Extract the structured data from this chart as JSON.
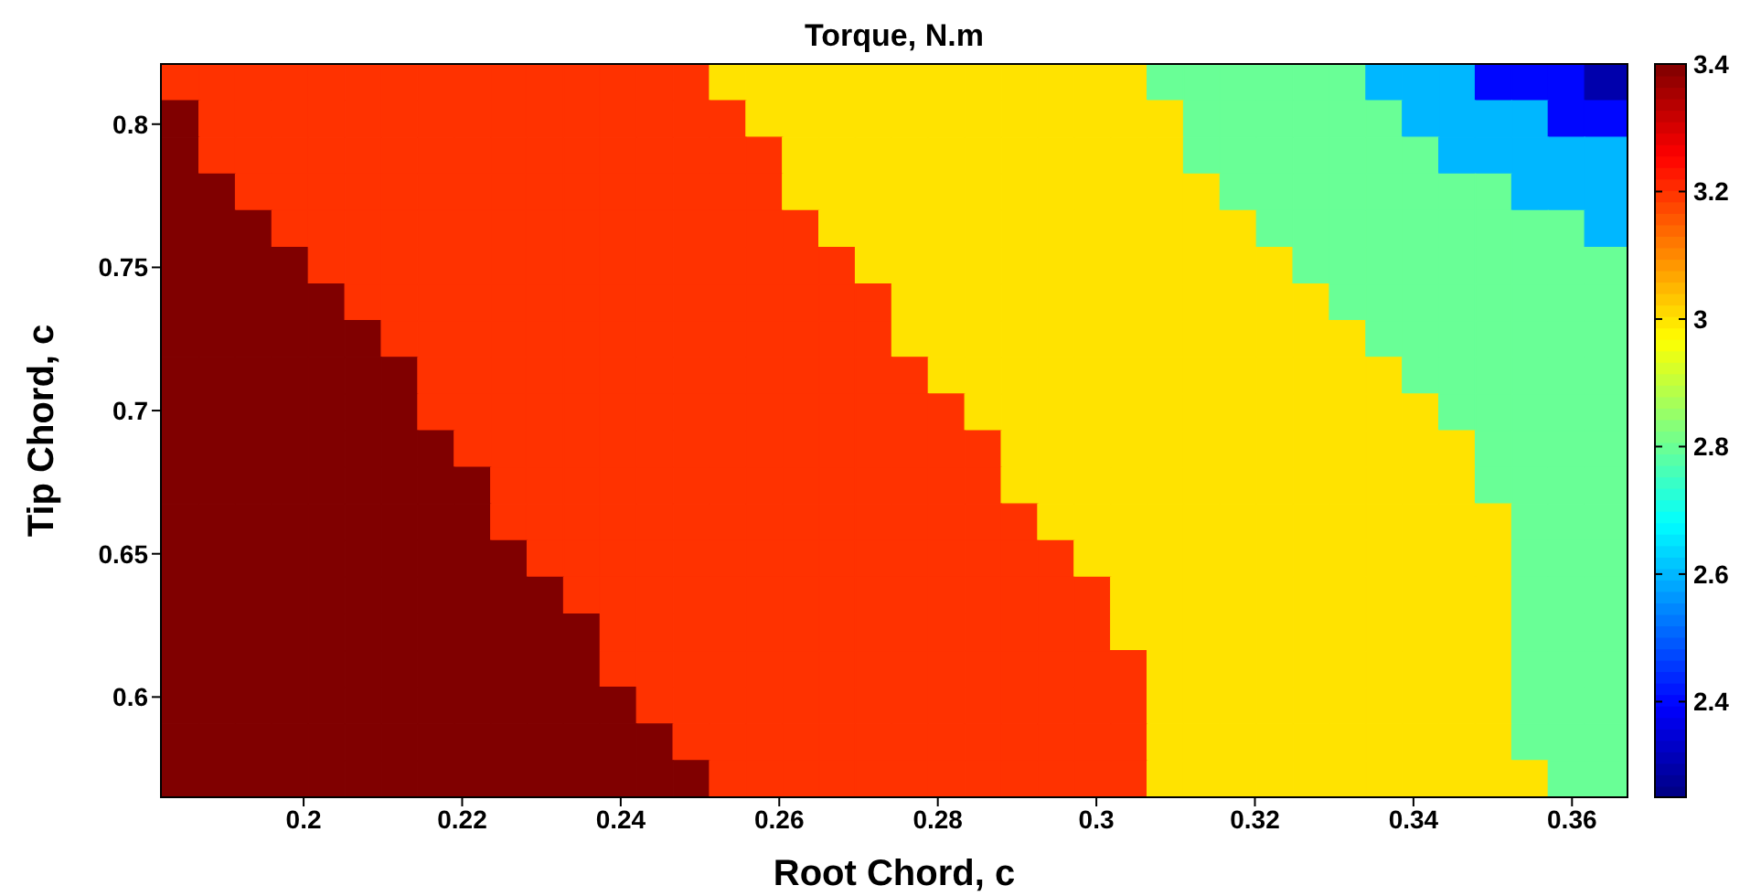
{
  "chart_data": {
    "type": "heatmap",
    "title": "Torque, N.m",
    "xlabel": "Root Chord, c",
    "ylabel": "Tip Chord, c",
    "x": [
      0.1845,
      0.1891,
      0.1937,
      0.1983,
      0.2029,
      0.2075,
      0.2121,
      0.2167,
      0.2213,
      0.2259,
      0.2305,
      0.2351,
      0.2397,
      0.2443,
      0.2489,
      0.2535,
      0.2581,
      0.2627,
      0.2673,
      0.2719,
      0.2765,
      0.2811,
      0.2857,
      0.2903,
      0.2949,
      0.2995,
      0.3041,
      0.3087,
      0.3133,
      0.3179,
      0.3225,
      0.3271,
      0.3317,
      0.3363,
      0.3409,
      0.3455,
      0.3501,
      0.3547,
      0.3593,
      0.3639
    ],
    "y": [
      0.8146,
      0.8018,
      0.789,
      0.7762,
      0.7634,
      0.7506,
      0.7378,
      0.725,
      0.7122,
      0.6994,
      0.6866,
      0.6738,
      0.661,
      0.6482,
      0.6354,
      0.6226,
      0.6098,
      0.597,
      0.5842,
      0.5714
    ],
    "xlim": [
      0.182,
      0.367
    ],
    "xticks": [
      0.2,
      0.22,
      0.24,
      0.26,
      0.28,
      0.3,
      0.32,
      0.34,
      0.36
    ],
    "ylim": [
      0.565,
      0.821
    ],
    "yticks": [
      0.6,
      0.65,
      0.7,
      0.75,
      0.8
    ],
    "clim": [
      2.25,
      3.4
    ],
    "cticks": [
      2.4,
      2.6,
      2.8,
      3,
      3.2,
      3.4
    ],
    "cells": [
      [
        3.2,
        3.2,
        3.2,
        3.2,
        3.2,
        3.2,
        3.2,
        3.2,
        3.2,
        3.2,
        3.2,
        3.2,
        3.2,
        3.2,
        3.2,
        3,
        3,
        3,
        3,
        3,
        3,
        3,
        3,
        3,
        3,
        3,
        3,
        2.8,
        2.8,
        2.8,
        2.8,
        2.8,
        2.8,
        2.6,
        2.6,
        2.6,
        2.4,
        2.4,
        2.4,
        2.3
      ],
      [
        3.4,
        3.2,
        3.2,
        3.2,
        3.2,
        3.2,
        3.2,
        3.2,
        3.2,
        3.2,
        3.2,
        3.2,
        3.2,
        3.2,
        3.2,
        3.2,
        3,
        3,
        3,
        3,
        3,
        3,
        3,
        3,
        3,
        3,
        3,
        3,
        2.8,
        2.8,
        2.8,
        2.8,
        2.8,
        2.8,
        2.6,
        2.6,
        2.6,
        2.6,
        2.4,
        2.4
      ],
      [
        3.4,
        3.2,
        3.2,
        3.2,
        3.2,
        3.2,
        3.2,
        3.2,
        3.2,
        3.2,
        3.2,
        3.2,
        3.2,
        3.2,
        3.2,
        3.2,
        3.2,
        3,
        3,
        3,
        3,
        3,
        3,
        3,
        3,
        3,
        3,
        3,
        2.8,
        2.8,
        2.8,
        2.8,
        2.8,
        2.8,
        2.8,
        2.6,
        2.6,
        2.6,
        2.6,
        2.6
      ],
      [
        3.4,
        3.4,
        3.2,
        3.2,
        3.2,
        3.2,
        3.2,
        3.2,
        3.2,
        3.2,
        3.2,
        3.2,
        3.2,
        3.2,
        3.2,
        3.2,
        3.2,
        3,
        3,
        3,
        3,
        3,
        3,
        3,
        3,
        3,
        3,
        3,
        3,
        2.8,
        2.8,
        2.8,
        2.8,
        2.8,
        2.8,
        2.8,
        2.8,
        2.6,
        2.6,
        2.6
      ],
      [
        3.4,
        3.4,
        3.4,
        3.2,
        3.2,
        3.2,
        3.2,
        3.2,
        3.2,
        3.2,
        3.2,
        3.2,
        3.2,
        3.2,
        3.2,
        3.2,
        3.2,
        3.2,
        3,
        3,
        3,
        3,
        3,
        3,
        3,
        3,
        3,
        3,
        3,
        3,
        2.8,
        2.8,
        2.8,
        2.8,
        2.8,
        2.8,
        2.8,
        2.8,
        2.8,
        2.6
      ],
      [
        3.4,
        3.4,
        3.4,
        3.4,
        3.2,
        3.2,
        3.2,
        3.2,
        3.2,
        3.2,
        3.2,
        3.2,
        3.2,
        3.2,
        3.2,
        3.2,
        3.2,
        3.2,
        3.2,
        3,
        3,
        3,
        3,
        3,
        3,
        3,
        3,
        3,
        3,
        3,
        3,
        2.8,
        2.8,
        2.8,
        2.8,
        2.8,
        2.8,
        2.8,
        2.8,
        2.8
      ],
      [
        3.4,
        3.4,
        3.4,
        3.4,
        3.4,
        3.2,
        3.2,
        3.2,
        3.2,
        3.2,
        3.2,
        3.2,
        3.2,
        3.2,
        3.2,
        3.2,
        3.2,
        3.2,
        3.2,
        3.2,
        3,
        3,
        3,
        3,
        3,
        3,
        3,
        3,
        3,
        3,
        3,
        3,
        2.8,
        2.8,
        2.8,
        2.8,
        2.8,
        2.8,
        2.8,
        2.8
      ],
      [
        3.4,
        3.4,
        3.4,
        3.4,
        3.4,
        3.4,
        3.2,
        3.2,
        3.2,
        3.2,
        3.2,
        3.2,
        3.2,
        3.2,
        3.2,
        3.2,
        3.2,
        3.2,
        3.2,
        3.2,
        3,
        3,
        3,
        3,
        3,
        3,
        3,
        3,
        3,
        3,
        3,
        3,
        3,
        2.8,
        2.8,
        2.8,
        2.8,
        2.8,
        2.8,
        2.8
      ],
      [
        3.4,
        3.4,
        3.4,
        3.4,
        3.4,
        3.4,
        3.4,
        3.2,
        3.2,
        3.2,
        3.2,
        3.2,
        3.2,
        3.2,
        3.2,
        3.2,
        3.2,
        3.2,
        3.2,
        3.2,
        3.2,
        3,
        3,
        3,
        3,
        3,
        3,
        3,
        3,
        3,
        3,
        3,
        3,
        3,
        2.8,
        2.8,
        2.8,
        2.8,
        2.8,
        2.8
      ],
      [
        3.4,
        3.4,
        3.4,
        3.4,
        3.4,
        3.4,
        3.4,
        3.2,
        3.2,
        3.2,
        3.2,
        3.2,
        3.2,
        3.2,
        3.2,
        3.2,
        3.2,
        3.2,
        3.2,
        3.2,
        3.2,
        3.2,
        3,
        3,
        3,
        3,
        3,
        3,
        3,
        3,
        3,
        3,
        3,
        3,
        3,
        2.8,
        2.8,
        2.8,
        2.8,
        2.8
      ],
      [
        3.4,
        3.4,
        3.4,
        3.4,
        3.4,
        3.4,
        3.4,
        3.4,
        3.2,
        3.2,
        3.2,
        3.2,
        3.2,
        3.2,
        3.2,
        3.2,
        3.2,
        3.2,
        3.2,
        3.2,
        3.2,
        3.2,
        3.2,
        3,
        3,
        3,
        3,
        3,
        3,
        3,
        3,
        3,
        3,
        3,
        3,
        3,
        2.8,
        2.8,
        2.8,
        2.8
      ],
      [
        3.4,
        3.4,
        3.4,
        3.4,
        3.4,
        3.4,
        3.4,
        3.4,
        3.4,
        3.2,
        3.2,
        3.2,
        3.2,
        3.2,
        3.2,
        3.2,
        3.2,
        3.2,
        3.2,
        3.2,
        3.2,
        3.2,
        3.2,
        3,
        3,
        3,
        3,
        3,
        3,
        3,
        3,
        3,
        3,
        3,
        3,
        3,
        2.8,
        2.8,
        2.8,
        2.8
      ],
      [
        3.4,
        3.4,
        3.4,
        3.4,
        3.4,
        3.4,
        3.4,
        3.4,
        3.4,
        3.2,
        3.2,
        3.2,
        3.2,
        3.2,
        3.2,
        3.2,
        3.2,
        3.2,
        3.2,
        3.2,
        3.2,
        3.2,
        3.2,
        3.2,
        3,
        3,
        3,
        3,
        3,
        3,
        3,
        3,
        3,
        3,
        3,
        3,
        3,
        2.8,
        2.8,
        2.8
      ],
      [
        3.4,
        3.4,
        3.4,
        3.4,
        3.4,
        3.4,
        3.4,
        3.4,
        3.4,
        3.4,
        3.2,
        3.2,
        3.2,
        3.2,
        3.2,
        3.2,
        3.2,
        3.2,
        3.2,
        3.2,
        3.2,
        3.2,
        3.2,
        3.2,
        3.2,
        3,
        3,
        3,
        3,
        3,
        3,
        3,
        3,
        3,
        3,
        3,
        3,
        2.8,
        2.8,
        2.8
      ],
      [
        3.4,
        3.4,
        3.4,
        3.4,
        3.4,
        3.4,
        3.4,
        3.4,
        3.4,
        3.4,
        3.4,
        3.2,
        3.2,
        3.2,
        3.2,
        3.2,
        3.2,
        3.2,
        3.2,
        3.2,
        3.2,
        3.2,
        3.2,
        3.2,
        3.2,
        3.2,
        3,
        3,
        3,
        3,
        3,
        3,
        3,
        3,
        3,
        3,
        3,
        2.8,
        2.8,
        2.8
      ],
      [
        3.4,
        3.4,
        3.4,
        3.4,
        3.4,
        3.4,
        3.4,
        3.4,
        3.4,
        3.4,
        3.4,
        3.4,
        3.2,
        3.2,
        3.2,
        3.2,
        3.2,
        3.2,
        3.2,
        3.2,
        3.2,
        3.2,
        3.2,
        3.2,
        3.2,
        3.2,
        3,
        3,
        3,
        3,
        3,
        3,
        3,
        3,
        3,
        3,
        3,
        2.8,
        2.8,
        2.8
      ],
      [
        3.4,
        3.4,
        3.4,
        3.4,
        3.4,
        3.4,
        3.4,
        3.4,
        3.4,
        3.4,
        3.4,
        3.4,
        3.2,
        3.2,
        3.2,
        3.2,
        3.2,
        3.2,
        3.2,
        3.2,
        3.2,
        3.2,
        3.2,
        3.2,
        3.2,
        3.2,
        3.2,
        3,
        3,
        3,
        3,
        3,
        3,
        3,
        3,
        3,
        3,
        2.8,
        2.8,
        2.8
      ],
      [
        3.4,
        3.4,
        3.4,
        3.4,
        3.4,
        3.4,
        3.4,
        3.4,
        3.4,
        3.4,
        3.4,
        3.4,
        3.4,
        3.2,
        3.2,
        3.2,
        3.2,
        3.2,
        3.2,
        3.2,
        3.2,
        3.2,
        3.2,
        3.2,
        3.2,
        3.2,
        3.2,
        3,
        3,
        3,
        3,
        3,
        3,
        3,
        3,
        3,
        3,
        2.8,
        2.8,
        2.8
      ],
      [
        3.4,
        3.4,
        3.4,
        3.4,
        3.4,
        3.4,
        3.4,
        3.4,
        3.4,
        3.4,
        3.4,
        3.4,
        3.4,
        3.4,
        3.2,
        3.2,
        3.2,
        3.2,
        3.2,
        3.2,
        3.2,
        3.2,
        3.2,
        3.2,
        3.2,
        3.2,
        3.2,
        3,
        3,
        3,
        3,
        3,
        3,
        3,
        3,
        3,
        3,
        2.8,
        2.8,
        2.8
      ],
      [
        3.4,
        3.4,
        3.4,
        3.4,
        3.4,
        3.4,
        3.4,
        3.4,
        3.4,
        3.4,
        3.4,
        3.4,
        3.4,
        3.4,
        3.4,
        3.2,
        3.2,
        3.2,
        3.2,
        3.2,
        3.2,
        3.2,
        3.2,
        3.2,
        3.2,
        3.2,
        3.2,
        3,
        3,
        3,
        3,
        3,
        3,
        3,
        3,
        3,
        3,
        3,
        2.8,
        2.8
      ]
    ]
  }
}
